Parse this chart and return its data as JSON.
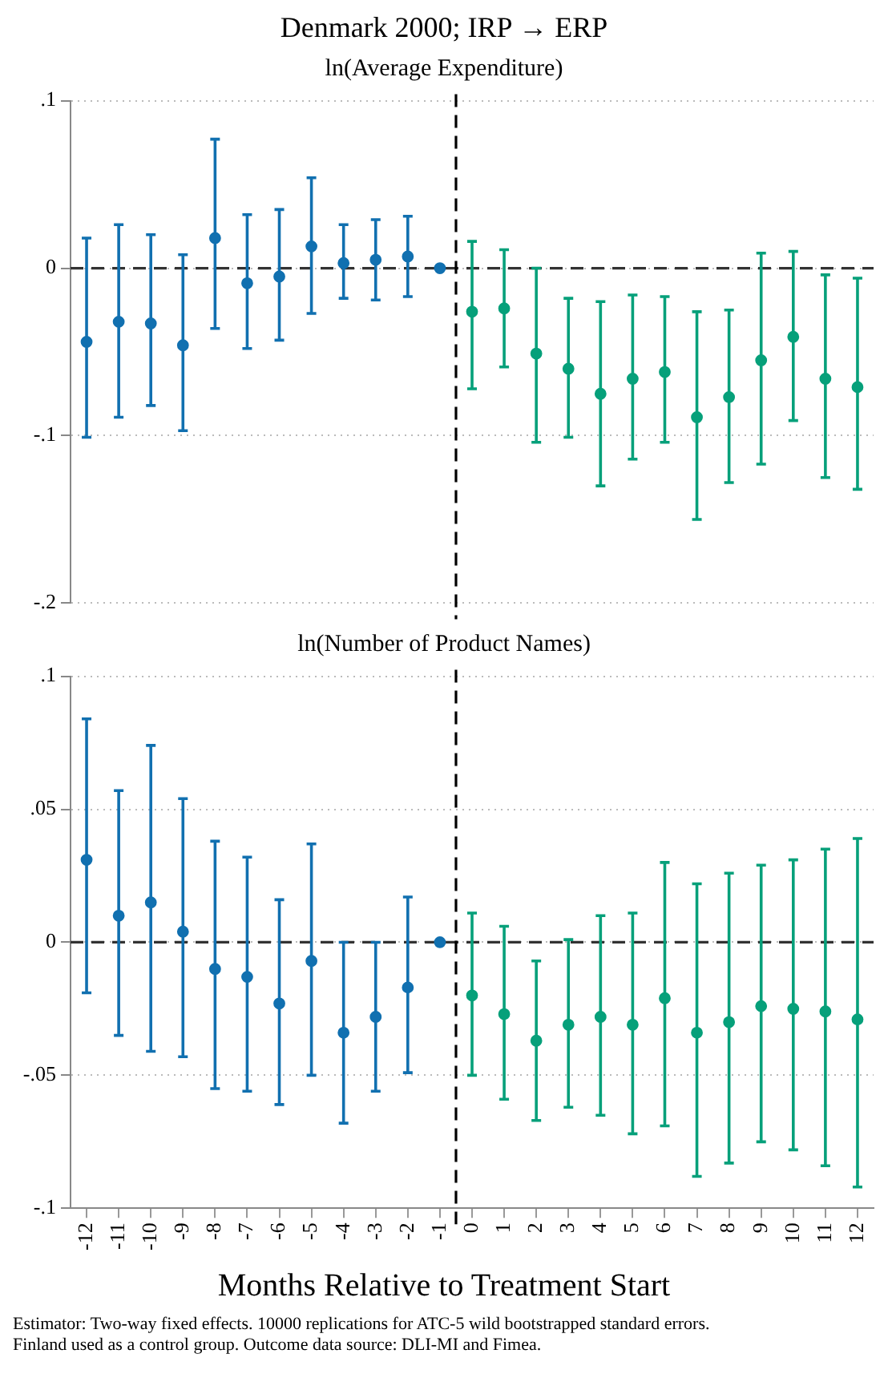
{
  "chart_data": [
    {
      "type": "scatter",
      "title": "Denmark 2000; IRP → ERP",
      "subtitle": "ln(Average Expenditure)",
      "marker": "circle",
      "grid": "y",
      "legend": false,
      "tick_labels": "y",
      "xlim": [
        -12.5,
        12.5
      ],
      "ylim": [
        -0.2,
        0.1
      ],
      "yticks": [
        {
          "value": 0.1,
          "label": ".1"
        },
        0,
        {
          "value": -0.1,
          "label": "-.1"
        },
        {
          "value": -0.2,
          "label": "-.2"
        }
      ],
      "ref_lines": [
        {
          "axis": "y",
          "value": 0,
          "color": "#333333",
          "line_style": "dashed"
        },
        {
          "axis": "x",
          "value": -0.5,
          "color": "#000000",
          "line_style": "dashed"
        }
      ],
      "series": [
        {
          "color": "#1170b0",
          "x": [
            -12,
            -11,
            -10,
            -9,
            -8,
            -7,
            -6,
            -5,
            -4,
            -3,
            -2,
            -1
          ],
          "values": [
            -0.044,
            -0.032,
            -0.033,
            -0.046,
            0.018,
            -0.009,
            -0.005,
            0.013,
            0.003,
            0.005,
            0.007,
            0
          ],
          "errors": [
            [
              -0.101,
              0.018
            ],
            [
              -0.089,
              0.026
            ],
            [
              -0.082,
              0.02
            ],
            [
              -0.097,
              0.008
            ],
            [
              -0.036,
              0.077
            ],
            [
              -0.048,
              0.032
            ],
            [
              -0.043,
              0.035
            ],
            [
              -0.027,
              0.054
            ],
            [
              -0.018,
              0.026
            ],
            [
              -0.019,
              0.029
            ],
            [
              -0.017,
              0.031
            ],
            null
          ]
        },
        {
          "color": "#06a07a",
          "x": [
            0,
            1,
            2,
            3,
            4,
            5,
            6,
            7,
            8,
            9,
            10,
            11,
            12
          ],
          "values": [
            -0.026,
            -0.024,
            -0.051,
            -0.06,
            -0.075,
            -0.066,
            -0.062,
            -0.089,
            -0.077,
            -0.055,
            -0.041,
            -0.066,
            -0.071
          ],
          "errors": [
            [
              -0.072,
              0.016
            ],
            [
              -0.059,
              0.011
            ],
            [
              -0.104,
              0
            ],
            [
              -0.101,
              -0.018
            ],
            [
              -0.13,
              -0.02
            ],
            [
              -0.114,
              -0.016
            ],
            [
              -0.104,
              -0.017
            ],
            [
              -0.15,
              -0.026
            ],
            [
              -0.128,
              -0.025
            ],
            [
              -0.117,
              0.009
            ],
            [
              -0.091,
              0.01
            ],
            [
              -0.125,
              -0.004
            ],
            [
              -0.132,
              -0.006
            ]
          ]
        }
      ]
    },
    {
      "type": "scatter",
      "subtitle": "ln(Number of Product Names)",
      "xlabel": "Months Relative to Treatment Start",
      "marker": "circle",
      "grid": "y",
      "legend": false,
      "annotations": [
        "Estimator: Two-way fixed effects. 10000 replications for ATC-5 wild bootstrapped standard errors.",
        "Finland used as a control group. Outcome data source: DLI-MI and Fimea."
      ],
      "xlim": [
        -12.5,
        12.5
      ],
      "ylim": [
        -0.1,
        0.1
      ],
      "xticks": [
        -12,
        -11,
        -10,
        -9,
        -8,
        -7,
        -6,
        -5,
        -4,
        -3,
        -2,
        -1,
        0,
        1,
        2,
        3,
        4,
        5,
        6,
        7,
        8,
        9,
        10,
        11,
        12
      ],
      "yticks": [
        {
          "value": 0.1,
          "label": ".1"
        },
        {
          "value": 0.05,
          "label": ".05"
        },
        0,
        {
          "value": -0.05,
          "label": "-.05"
        },
        {
          "value": -0.1,
          "label": "-.1"
        }
      ],
      "ref_lines": [
        {
          "axis": "y",
          "value": 0,
          "color": "#333333",
          "line_style": "dashed"
        },
        {
          "axis": "x",
          "value": -0.5,
          "color": "#000000",
          "line_style": "dashed"
        }
      ],
      "series": [
        {
          "color": "#1170b0",
          "x": [
            -12,
            -11,
            -10,
            -9,
            -8,
            -7,
            -6,
            -5,
            -4,
            -3,
            -2,
            -1
          ],
          "values": [
            0.031,
            0.01,
            0.015,
            0.004,
            -0.01,
            -0.013,
            -0.023,
            -0.007,
            -0.034,
            -0.028,
            -0.017,
            0
          ],
          "errors": [
            [
              -0.019,
              0.084
            ],
            [
              -0.035,
              0.057
            ],
            [
              -0.041,
              0.074
            ],
            [
              -0.043,
              0.054
            ],
            [
              -0.055,
              0.038
            ],
            [
              -0.056,
              0.032
            ],
            [
              -0.061,
              0.016
            ],
            [
              -0.05,
              0.037
            ],
            [
              -0.068,
              0
            ],
            [
              -0.056,
              0
            ],
            [
              -0.049,
              0.017
            ],
            null
          ]
        },
        {
          "color": "#06a07a",
          "x": [
            0,
            1,
            2,
            3,
            4,
            5,
            6,
            7,
            8,
            9,
            10,
            11,
            12
          ],
          "values": [
            -0.02,
            -0.027,
            -0.037,
            -0.031,
            -0.028,
            -0.031,
            -0.021,
            -0.034,
            -0.03,
            -0.024,
            -0.025,
            -0.026,
            -0.029
          ],
          "errors": [
            [
              -0.05,
              0.011
            ],
            [
              -0.059,
              0.006
            ],
            [
              -0.067,
              -0.007
            ],
            [
              -0.062,
              0.001
            ],
            [
              -0.065,
              0.01
            ],
            [
              -0.072,
              0.011
            ],
            [
              -0.069,
              0.03
            ],
            [
              -0.088,
              0.022
            ],
            [
              -0.083,
              0.026
            ],
            [
              -0.075,
              0.029
            ],
            [
              -0.078,
              0.031
            ],
            [
              -0.084,
              0.035
            ],
            [
              -0.092,
              0.039
            ]
          ]
        }
      ]
    }
  ]
}
